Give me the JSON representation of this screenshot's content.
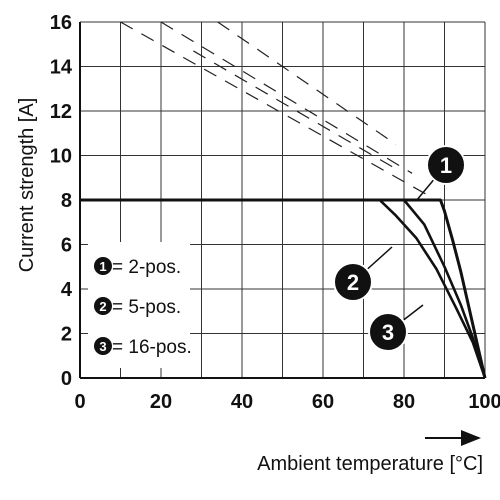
{
  "chart_data": {
    "type": "line",
    "xlabel": "Ambient temperature [°C]",
    "ylabel": "Current strength [A]",
    "xlim": [
      0,
      100
    ],
    "ylim": [
      0,
      16
    ],
    "x_ticks": [
      "0",
      "20",
      "40",
      "60",
      "80",
      "100"
    ],
    "y_ticks": [
      "0",
      "2",
      "4",
      "6",
      "8",
      "10",
      "12",
      "14",
      "16"
    ],
    "grid": true,
    "series": [
      {
        "name": "2-pos.",
        "marker": "1",
        "x": [
          0,
          89,
          90,
          92,
          94,
          96,
          98,
          100
        ],
        "y": [
          8,
          8,
          7.5,
          6.2,
          4.8,
          3.2,
          1.6,
          0
        ]
      },
      {
        "name": "5-pos.",
        "marker": "2",
        "x": [
          0,
          80,
          85,
          90,
          94,
          97,
          100
        ],
        "y": [
          8,
          8,
          6.9,
          5.0,
          3.3,
          1.8,
          0
        ]
      },
      {
        "name": "16-pos.",
        "marker": "3",
        "x": [
          0,
          74,
          78,
          83,
          88,
          93,
          97,
          100
        ],
        "y": [
          8,
          8,
          7.3,
          6.3,
          4.9,
          3.1,
          1.6,
          0
        ]
      }
    ],
    "derating_dashes": [
      {
        "x": [
          10,
          88
        ],
        "y": [
          16,
          8
        ]
      },
      {
        "x": [
          20,
          82
        ],
        "y": [
          16,
          9.2
        ]
      },
      {
        "x": [
          28,
          78
        ],
        "y": [
          14.7,
          9.4
        ]
      },
      {
        "x": [
          34,
          78
        ],
        "y": [
          16,
          10.5
        ]
      }
    ],
    "legend": [
      {
        "marker": "1",
        "text": " = 2-pos."
      },
      {
        "marker": "2",
        "text": " = 5-pos."
      },
      {
        "marker": "3",
        "text": " = 16-pos."
      }
    ],
    "legend_position": "lower-left"
  },
  "colors": {
    "line": "#111111",
    "grid": "#333333",
    "marker_fill": "#111111",
    "background": "#ffffff"
  }
}
